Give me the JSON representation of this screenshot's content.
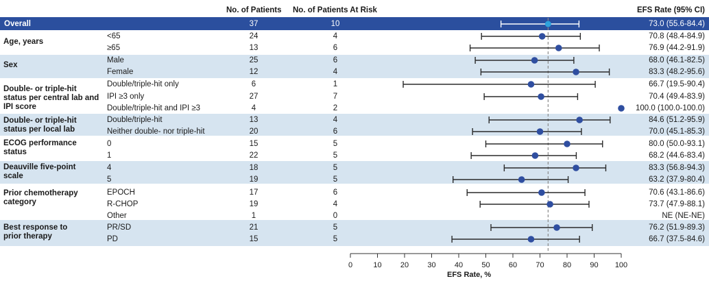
{
  "header": {
    "patients": "No. of Patients",
    "at_risk": "No. of Patients At Risk",
    "efs": "EFS Rate (95% CI)"
  },
  "groups": [
    {
      "label": "Age, years"
    },
    {
      "label": "Sex"
    },
    {
      "label": "Double- or triple-hit status per central lab and IPI score"
    },
    {
      "label": "Double- or triple-hit status per local lab"
    },
    {
      "label": "ECOG performance status"
    },
    {
      "label": "Deauville five-point scale"
    },
    {
      "label": "Prior chemotherapy category"
    },
    {
      "label": "Best response to prior therapy"
    }
  ],
  "rows": [
    {
      "label": "Overall",
      "patients": "37",
      "at_risk": "10",
      "efs_text": "73.0 (55.6-84.4)"
    },
    {
      "label": "<65",
      "patients": "24",
      "at_risk": "4",
      "efs_text": "70.8 (48.4-84.9)"
    },
    {
      "label": "≥65",
      "patients": "13",
      "at_risk": "6",
      "efs_text": "76.9 (44.2-91.9)"
    },
    {
      "label": "Male",
      "patients": "25",
      "at_risk": "6",
      "efs_text": "68.0 (46.1-82.5)"
    },
    {
      "label": "Female",
      "patients": "12",
      "at_risk": "4",
      "efs_text": "83.3 (48.2-95.6)"
    },
    {
      "label": "Double/triple-hit only",
      "patients": "6",
      "at_risk": "1",
      "efs_text": "66.7 (19.5-90.4)"
    },
    {
      "label": "IPI ≥3 only",
      "patients": "27",
      "at_risk": "7",
      "efs_text": "70.4 (49.4-83.9)"
    },
    {
      "label": "Double/triple-hit and IPI ≥3",
      "patients": "4",
      "at_risk": "2",
      "efs_text": "100.0 (100.0-100.0)"
    },
    {
      "label": "Double/triple-hit",
      "patients": "13",
      "at_risk": "4",
      "efs_text": "84.6 (51.2-95.9)"
    },
    {
      "label": "Neither double- nor triple-hit",
      "patients": "20",
      "at_risk": "6",
      "efs_text": "70.0 (45.1-85.3)"
    },
    {
      "label": "0",
      "patients": "15",
      "at_risk": "5",
      "efs_text": "80.0 (50.0-93.1)"
    },
    {
      "label": "1",
      "patients": "22",
      "at_risk": "5",
      "efs_text": "68.2 (44.6-83.4)"
    },
    {
      "label": "4",
      "patients": "18",
      "at_risk": "5",
      "efs_text": "83.3 (56.8-94.3)"
    },
    {
      "label": "5",
      "patients": "19",
      "at_risk": "5",
      "efs_text": "63.2 (37.9-80.4)"
    },
    {
      "label": "EPOCH",
      "patients": "17",
      "at_risk": "6",
      "efs_text": "70.6 (43.1-86.6)"
    },
    {
      "label": "R-CHOP",
      "patients": "19",
      "at_risk": "4",
      "efs_text": "73.7 (47.9-88.1)"
    },
    {
      "label": "Other",
      "patients": "1",
      "at_risk": "0",
      "efs_text": "NE (NE-NE)"
    },
    {
      "label": "PR/SD",
      "patients": "21",
      "at_risk": "5",
      "efs_text": "76.2 (51.9-89.3)"
    },
    {
      "label": "PD",
      "patients": "15",
      "at_risk": "5",
      "efs_text": "66.7 (37.5-84.6)"
    }
  ],
  "chart_data": {
    "type": "forest",
    "xlabel": "EFS Rate, %",
    "xlim": [
      0,
      100
    ],
    "xticks": [
      "0",
      "10",
      "20",
      "30",
      "40",
      "50",
      "60",
      "70",
      "80",
      "90",
      "100"
    ],
    "reference_line": 73.0,
    "colors": {
      "overall_band": "#2b4f9e",
      "shaded_band": "#d6e4f0",
      "point": "#2f4ea0",
      "overall_point": "#2ea3dc",
      "reference": "#8a8a8a"
    },
    "points": [
      {
        "label": "Overall",
        "est": 73.0,
        "lo": 55.6,
        "hi": 84.4
      },
      {
        "label": "<65",
        "est": 70.8,
        "lo": 48.4,
        "hi": 84.9
      },
      {
        "label": "≥65",
        "est": 76.9,
        "lo": 44.2,
        "hi": 91.9
      },
      {
        "label": "Male",
        "est": 68.0,
        "lo": 46.1,
        "hi": 82.5
      },
      {
        "label": "Female",
        "est": 83.3,
        "lo": 48.2,
        "hi": 95.6
      },
      {
        "label": "Double/triple-hit only",
        "est": 66.7,
        "lo": 19.5,
        "hi": 90.4
      },
      {
        "label": "IPI ≥3 only",
        "est": 70.4,
        "lo": 49.4,
        "hi": 83.9
      },
      {
        "label": "Double/triple-hit and IPI ≥3",
        "est": 100.0,
        "lo": 100.0,
        "hi": 100.0
      },
      {
        "label": "Double/triple-hit",
        "est": 84.6,
        "lo": 51.2,
        "hi": 95.9
      },
      {
        "label": "Neither double- nor triple-hit",
        "est": 70.0,
        "lo": 45.1,
        "hi": 85.3
      },
      {
        "label": "0",
        "est": 80.0,
        "lo": 50.0,
        "hi": 93.1
      },
      {
        "label": "1",
        "est": 68.2,
        "lo": 44.6,
        "hi": 83.4
      },
      {
        "label": "4",
        "est": 83.3,
        "lo": 56.8,
        "hi": 94.3
      },
      {
        "label": "5",
        "est": 63.2,
        "lo": 37.9,
        "hi": 80.4
      },
      {
        "label": "EPOCH",
        "est": 70.6,
        "lo": 43.1,
        "hi": 86.6
      },
      {
        "label": "R-CHOP",
        "est": 73.7,
        "lo": 47.9,
        "hi": 88.1
      },
      {
        "label": "Other",
        "est": null,
        "lo": null,
        "hi": null
      },
      {
        "label": "PR/SD",
        "est": 76.2,
        "lo": 51.9,
        "hi": 89.3
      },
      {
        "label": "PD",
        "est": 66.7,
        "lo": 37.5,
        "hi": 84.6
      }
    ]
  }
}
